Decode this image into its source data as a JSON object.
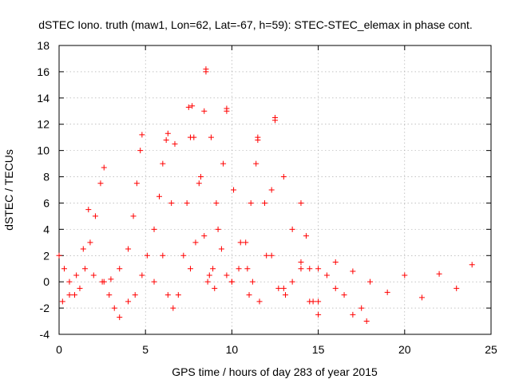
{
  "chart_data": {
    "type": "scatter",
    "title": "dSTEC Iono. truth (maw1, Lon=62, Lat=-67, h=59): STEC-STEC_elemax in phase cont.",
    "xlabel": "GPS time / hours of day 283 of year 2015",
    "ylabel": "dSTEC  / TECUs",
    "xlim": [
      0,
      25
    ],
    "ylim": [
      -4,
      18
    ],
    "xticks": [
      0,
      5,
      10,
      15,
      20,
      25
    ],
    "yticks": [
      -4,
      -2,
      0,
      2,
      4,
      6,
      8,
      10,
      12,
      14,
      16,
      18
    ],
    "grid": true,
    "marker": "+",
    "color": "#ff0000",
    "series": [
      {
        "x": [
          0.0,
          0.3,
          0.6,
          0.9,
          1.2,
          1.5,
          1.8,
          2.1,
          2.4,
          2.6
        ],
        "y": [
          2.0,
          1.0,
          0.0,
          -1.0,
          -0.5,
          1.0,
          3.0,
          5.0,
          7.5,
          8.7
        ]
      },
      {
        "x": [
          0.2,
          0.6,
          1.0,
          1.4,
          1.7
        ],
        "y": [
          -1.5,
          -1.0,
          0.5,
          2.5,
          5.5
        ]
      },
      {
        "x": [
          2.6,
          2.9,
          3.2,
          3.5
        ],
        "y": [
          0.0,
          -1.0,
          -2.0,
          -2.7
        ]
      },
      {
        "x": [
          2.0,
          2.5,
          3.0,
          3.5,
          4.0,
          4.3,
          4.5,
          4.7,
          4.8
        ],
        "y": [
          0.5,
          0.0,
          0.2,
          1.0,
          2.5,
          5.0,
          7.5,
          10.0,
          11.2
        ]
      },
      {
        "x": [
          4.0,
          4.4,
          4.8,
          5.1,
          5.5,
          5.8,
          6.0,
          6.2,
          6.3
        ],
        "y": [
          -1.5,
          -1.0,
          0.5,
          2.0,
          4.0,
          6.5,
          9.0,
          10.8,
          11.3
        ]
      },
      {
        "x": [
          5.5,
          6.0,
          6.5,
          6.7
        ],
        "y": [
          0.0,
          2.0,
          6.0,
          10.5
        ]
      },
      {
        "x": [
          6.3,
          6.6,
          6.9,
          7.2,
          7.4,
          7.6,
          7.7
        ],
        "y": [
          -1.0,
          -2.0,
          -1.0,
          2.0,
          6.0,
          11.0,
          13.4
        ]
      },
      {
        "x": [
          7.5,
          7.8,
          8.1,
          8.4,
          8.7,
          9.0
        ],
        "y": [
          13.3,
          11.0,
          7.5,
          3.5,
          0.5,
          -0.5
        ]
      },
      {
        "x": [
          7.6,
          7.9,
          8.2,
          8.4,
          8.5
        ],
        "y": [
          1.0,
          3.0,
          8.0,
          13.0,
          16.2
        ]
      },
      {
        "x": [
          8.5,
          8.8,
          9.1,
          9.4,
          9.7,
          10.0
        ],
        "y": [
          16.0,
          11.0,
          6.0,
          2.5,
          0.5,
          0.0
        ]
      },
      {
        "x": [
          8.6,
          8.9,
          9.2,
          9.5,
          9.7
        ],
        "y": [
          0.0,
          1.0,
          4.0,
          9.0,
          13.2
        ]
      },
      {
        "x": [
          9.7,
          10.1,
          10.5,
          10.9,
          11.2
        ],
        "y": [
          13.0,
          7.0,
          3.0,
          1.0,
          0.0
        ]
      },
      {
        "x": [
          10.0,
          10.4,
          10.8,
          11.1,
          11.4,
          11.5
        ],
        "y": [
          0.0,
          1.0,
          3.0,
          6.0,
          9.0,
          11.0
        ]
      },
      {
        "x": [
          11.5,
          11.9,
          12.3,
          12.7,
          13.1
        ],
        "y": [
          10.8,
          6.0,
          2.0,
          -0.5,
          -1.0
        ]
      },
      {
        "x": [
          11.0,
          11.6,
          12.0,
          12.3,
          12.5
        ],
        "y": [
          -1.0,
          -1.5,
          2.0,
          7.0,
          12.5
        ]
      },
      {
        "x": [
          12.5,
          13.0,
          13.5,
          14.0,
          14.5
        ],
        "y": [
          12.3,
          8.0,
          4.0,
          1.0,
          -1.5
        ]
      },
      {
        "x": [
          13.0,
          13.5,
          14.0,
          14.3,
          14.7,
          15.0
        ],
        "y": [
          -0.5,
          0.0,
          1.5,
          3.5,
          -1.5,
          -2.5
        ]
      },
      {
        "x": [
          14.0,
          14.5,
          15.0,
          15.5,
          16.0,
          16.5,
          17.0,
          17.5,
          17.8
        ],
        "y": [
          6.0,
          1.0,
          -1.5,
          0.5,
          1.5,
          -1.0,
          -2.5,
          -2.0,
          -3.0
        ]
      },
      {
        "x": [
          15.0,
          16.0,
          17.0,
          18.0,
          19.0,
          20.0,
          21.0,
          22.0,
          23.0,
          23.9
        ],
        "y": [
          1.0,
          -0.5,
          0.8,
          0.0,
          -0.8,
          0.5,
          -1.2,
          0.6,
          -0.5,
          1.3
        ]
      }
    ]
  }
}
